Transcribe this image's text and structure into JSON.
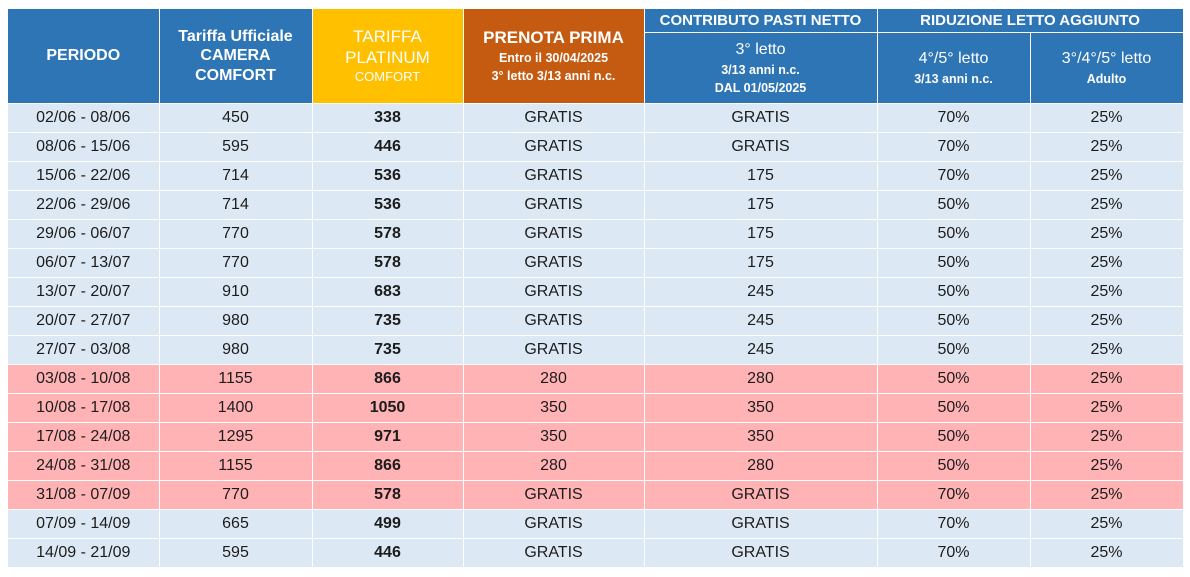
{
  "header": {
    "periodo": "PERIODO",
    "ufficiale_l1": "Tariffa Ufficiale",
    "ufficiale_l2": "CAMERA",
    "ufficiale_l3": "COMFORT",
    "platinum_l1": "TARIFFA",
    "platinum_l2": "PLATINUM",
    "platinum_l3": "COMFORT",
    "prenota_l1": "PRENOTA PRIMA",
    "prenota_l2": "Entro il 30/04/2025",
    "prenota_l3": "3° letto 3/13 anni n.c.",
    "contributo": "CONTRIBUTO PASTI NETTO",
    "contributo_sub_l1": "3° letto",
    "contributo_sub_l2": "3/13 anni n.c.",
    "contributo_sub_l3": "DAL 01/05/2025",
    "riduzione": "RIDUZIONE LETTO AGGIUNTO",
    "riduzione_sub1_l1": "4°/5° letto",
    "riduzione_sub1_l2": "3/13 anni n.c.",
    "riduzione_sub2_l1": "3°/4°/5° letto",
    "riduzione_sub2_l2": "Adulto"
  },
  "colors": {
    "header_blue": "#2e75b6",
    "header_gold": "#ffc000",
    "header_orange": "#c55a11",
    "row_blue": "#dce9f5",
    "row_pink": "#ffb3b5"
  },
  "rows": [
    {
      "periodo": "02/06 - 08/06",
      "ufficiale": "450",
      "platinum": "338",
      "prenota": "GRATIS",
      "contributo": "GRATIS",
      "rid1": "70%",
      "rid2": "25%",
      "shade": "blue"
    },
    {
      "periodo": "08/06 - 15/06",
      "ufficiale": "595",
      "platinum": "446",
      "prenota": "GRATIS",
      "contributo": "GRATIS",
      "rid1": "70%",
      "rid2": "25%",
      "shade": "blue"
    },
    {
      "periodo": "15/06 - 22/06",
      "ufficiale": "714",
      "platinum": "536",
      "prenota": "GRATIS",
      "contributo": "175",
      "rid1": "70%",
      "rid2": "25%",
      "shade": "blue"
    },
    {
      "periodo": "22/06 - 29/06",
      "ufficiale": "714",
      "platinum": "536",
      "prenota": "GRATIS",
      "contributo": "175",
      "rid1": "50%",
      "rid2": "25%",
      "shade": "blue"
    },
    {
      "periodo": "29/06 - 06/07",
      "ufficiale": "770",
      "platinum": "578",
      "prenota": "GRATIS",
      "contributo": "175",
      "rid1": "50%",
      "rid2": "25%",
      "shade": "blue"
    },
    {
      "periodo": "06/07 - 13/07",
      "ufficiale": "770",
      "platinum": "578",
      "prenota": "GRATIS",
      "contributo": "175",
      "rid1": "50%",
      "rid2": "25%",
      "shade": "blue"
    },
    {
      "periodo": "13/07 - 20/07",
      "ufficiale": "910",
      "platinum": "683",
      "prenota": "GRATIS",
      "contributo": "245",
      "rid1": "50%",
      "rid2": "25%",
      "shade": "blue"
    },
    {
      "periodo": "20/07 - 27/07",
      "ufficiale": "980",
      "platinum": "735",
      "prenota": "GRATIS",
      "contributo": "245",
      "rid1": "50%",
      "rid2": "25%",
      "shade": "blue"
    },
    {
      "periodo": "27/07 - 03/08",
      "ufficiale": "980",
      "platinum": "735",
      "prenota": "GRATIS",
      "contributo": "245",
      "rid1": "50%",
      "rid2": "25%",
      "shade": "blue"
    },
    {
      "periodo": "03/08 - 10/08",
      "ufficiale": "1155",
      "platinum": "866",
      "prenota": "280",
      "contributo": "280",
      "rid1": "50%",
      "rid2": "25%",
      "shade": "pink"
    },
    {
      "periodo": "10/08 - 17/08",
      "ufficiale": "1400",
      "platinum": "1050",
      "prenota": "350",
      "contributo": "350",
      "rid1": "50%",
      "rid2": "25%",
      "shade": "pink"
    },
    {
      "periodo": "17/08 - 24/08",
      "ufficiale": "1295",
      "platinum": "971",
      "prenota": "350",
      "contributo": "350",
      "rid1": "50%",
      "rid2": "25%",
      "shade": "pink"
    },
    {
      "periodo": "24/08 - 31/08",
      "ufficiale": "1155",
      "platinum": "866",
      "prenota": "280",
      "contributo": "280",
      "rid1": "50%",
      "rid2": "25%",
      "shade": "pink"
    },
    {
      "periodo": "31/08 - 07/09",
      "ufficiale": "770",
      "platinum": "578",
      "prenota": "GRATIS",
      "contributo": "GRATIS",
      "rid1": "70%",
      "rid2": "25%",
      "shade": "pink"
    },
    {
      "periodo": "07/09 - 14/09",
      "ufficiale": "665",
      "platinum": "499",
      "prenota": "GRATIS",
      "contributo": "GRATIS",
      "rid1": "70%",
      "rid2": "25%",
      "shade": "blue"
    },
    {
      "periodo": "14/09 - 21/09",
      "ufficiale": "595",
      "platinum": "446",
      "prenota": "GRATIS",
      "contributo": "GRATIS",
      "rid1": "70%",
      "rid2": "25%",
      "shade": "blue"
    }
  ]
}
